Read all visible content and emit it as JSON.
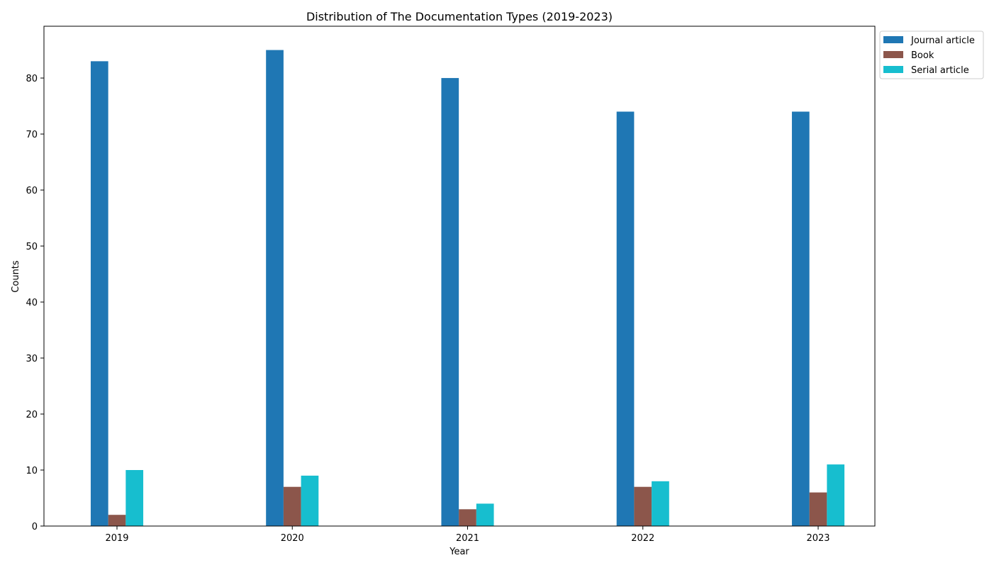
{
  "chart_data": {
    "type": "bar",
    "title": "Distribution of The Documentation Types (2019-2023)",
    "xlabel": "Year",
    "ylabel": "Counts",
    "categories": [
      "2019",
      "2020",
      "2021",
      "2022",
      "2023"
    ],
    "series": [
      {
        "name": "Journal article",
        "color": "#1f77b4",
        "values": [
          83,
          85,
          80,
          74,
          74
        ]
      },
      {
        "name": "Book",
        "color": "#8c564b",
        "values": [
          2,
          7,
          3,
          7,
          6
        ]
      },
      {
        "name": "Serial article",
        "color": "#17becf",
        "values": [
          10,
          9,
          4,
          8,
          11
        ]
      }
    ],
    "ylim": [
      0,
      89.25
    ],
    "yticks": [
      0,
      10,
      20,
      30,
      40,
      50,
      60,
      70,
      80
    ],
    "grid": false,
    "legend_position": "outside-top-right"
  }
}
